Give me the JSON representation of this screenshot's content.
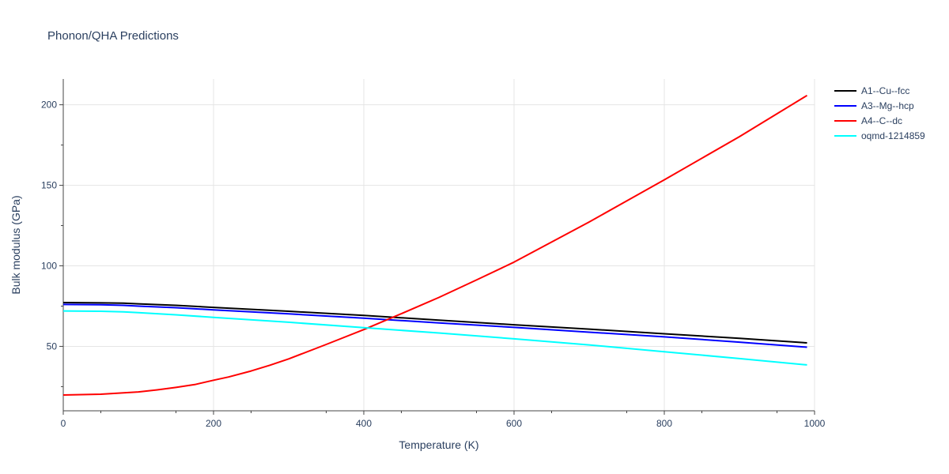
{
  "chart_data": {
    "type": "line",
    "title": "Phonon/QHA Predictions",
    "xlabel": "Temperature (K)",
    "ylabel": "Bulk modulus (GPa)",
    "xlim": [
      0,
      1000
    ],
    "ylim": [
      10,
      216
    ],
    "x_ticks": [
      0,
      200,
      400,
      600,
      800,
      1000
    ],
    "y_ticks": [
      50,
      100,
      150,
      200
    ],
    "x_tick_labels": [
      "0",
      "200",
      "400",
      "600",
      "800",
      "1000"
    ],
    "y_tick_labels": [
      "50",
      "100",
      "150",
      "200"
    ],
    "grid": true,
    "legend_position": "top-right",
    "series": [
      {
        "name": "A1--Cu--fcc",
        "color": "#000000",
        "x": [
          0,
          50,
          80,
          100,
          150,
          200,
          300,
          400,
          500,
          600,
          700,
          800,
          900,
          990
        ],
        "y": [
          77.2,
          77.0,
          76.8,
          76.4,
          75.5,
          74.2,
          71.8,
          69.2,
          66.3,
          63.4,
          60.7,
          57.8,
          55.0,
          52.2
        ]
      },
      {
        "name": "A3--Mg--hcp",
        "color": "#0000ff",
        "x": [
          0,
          50,
          80,
          100,
          150,
          200,
          300,
          400,
          500,
          600,
          700,
          800,
          900,
          990
        ],
        "y": [
          76.0,
          75.8,
          75.5,
          75.0,
          74.0,
          72.7,
          70.2,
          67.5,
          64.6,
          61.8,
          58.8,
          55.9,
          52.6,
          49.5
        ]
      },
      {
        "name": "A4--C--dc",
        "color": "#ff0000",
        "x": [
          0,
          50,
          100,
          125,
          150,
          175,
          200,
          220,
          250,
          275,
          300,
          350,
          400,
          450,
          500,
          550,
          600,
          700,
          800,
          900,
          990
        ],
        "y": [
          19.8,
          20.3,
          21.7,
          23.0,
          24.5,
          26.3,
          29.0,
          31.0,
          34.7,
          38.3,
          42.2,
          51.2,
          60.4,
          70.3,
          80.4,
          91.2,
          102.3,
          127.2,
          153.4,
          180.2,
          205.8
        ]
      },
      {
        "name": "oqmd-1214859",
        "color": "#00ffff",
        "x": [
          0,
          50,
          80,
          100,
          150,
          200,
          300,
          400,
          500,
          600,
          700,
          800,
          900,
          990
        ],
        "y": [
          72.0,
          71.8,
          71.4,
          70.9,
          69.6,
          68.0,
          65.0,
          61.6,
          58.3,
          54.7,
          50.9,
          46.7,
          42.4,
          38.5
        ]
      }
    ]
  }
}
